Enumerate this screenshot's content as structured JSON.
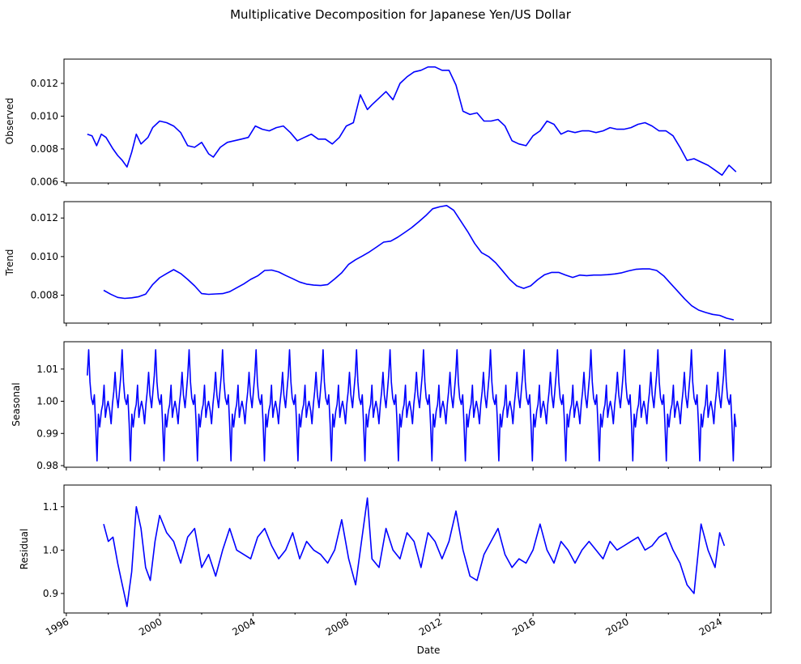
{
  "chart_data": {
    "type": "line",
    "title": "Multiplicative Decomposition for Japanese Yen/US Dollar",
    "xlabel": "Date",
    "xlim": [
      1995.9,
      2026.2
    ],
    "x_ticks": [
      {
        "value": 1996,
        "label": "1996"
      },
      {
        "value": 2000,
        "label": "2000"
      },
      {
        "value": 2004,
        "label": "2004"
      },
      {
        "value": 2008,
        "label": "2008"
      },
      {
        "value": 2012,
        "label": "2012"
      },
      {
        "value": 2016,
        "label": "2016"
      },
      {
        "value": 2020,
        "label": "2020"
      },
      {
        "value": 2024,
        "label": "2024"
      }
    ],
    "x_minor_ticks": [
      1997.8,
      2001.8,
      2005.8,
      2009.8,
      2013.8,
      2017.8,
      2021.8,
      2025.8
    ],
    "line_color": "#0000ff",
    "panels": [
      {
        "ylabel": "Observed",
        "ylim": [
          0.00592,
          0.01348
        ],
        "y_ticks": [
          {
            "value": 0.006,
            "label": "0.006"
          },
          {
            "value": 0.008,
            "label": "0.008"
          },
          {
            "value": 0.01,
            "label": "0.010"
          },
          {
            "value": 0.012,
            "label": "0.012"
          }
        ],
        "x": [
          1996.9,
          1997.1,
          1997.3,
          1997.5,
          1997.7,
          1998.0,
          1998.2,
          1998.4,
          1998.6,
          1998.8,
          1999.0,
          1999.2,
          1999.5,
          1999.7,
          2000.0,
          2000.3,
          2000.6,
          2000.9,
          2001.2,
          2001.5,
          2001.8,
          2002.1,
          2002.3,
          2002.6,
          2002.9,
          2003.2,
          2003.5,
          2003.8,
          2004.1,
          2004.4,
          2004.7,
          2005.0,
          2005.3,
          2005.6,
          2005.9,
          2006.2,
          2006.5,
          2006.8,
          2007.1,
          2007.4,
          2007.7,
          2008.0,
          2008.3,
          2008.6,
          2008.9,
          2009.1,
          2009.4,
          2009.7,
          2010.0,
          2010.3,
          2010.6,
          2010.9,
          2011.2,
          2011.5,
          2011.8,
          2012.1,
          2012.4,
          2012.7,
          2013.0,
          2013.3,
          2013.6,
          2013.9,
          2014.2,
          2014.5,
          2014.8,
          2015.1,
          2015.4,
          2015.7,
          2016.0,
          2016.3,
          2016.6,
          2016.9,
          2017.2,
          2017.5,
          2017.8,
          2018.1,
          2018.4,
          2018.7,
          2019.0,
          2019.3,
          2019.6,
          2019.9,
          2020.2,
          2020.5,
          2020.8,
          2021.1,
          2021.4,
          2021.7,
          2022.0,
          2022.3,
          2022.6,
          2022.9,
          2023.2,
          2023.5,
          2023.8,
          2024.1,
          2024.4,
          2024.7
        ],
        "y": [
          0.0089,
          0.0088,
          0.0082,
          0.0089,
          0.0087,
          0.008,
          0.0076,
          0.0073,
          0.0069,
          0.0078,
          0.0089,
          0.0083,
          0.0087,
          0.0093,
          0.0097,
          0.0096,
          0.0094,
          0.009,
          0.0082,
          0.0081,
          0.0084,
          0.0077,
          0.0075,
          0.0081,
          0.0084,
          0.0085,
          0.0086,
          0.0087,
          0.0094,
          0.0092,
          0.0091,
          0.0093,
          0.0094,
          0.009,
          0.0085,
          0.0087,
          0.0089,
          0.0086,
          0.0086,
          0.0083,
          0.0087,
          0.0094,
          0.0096,
          0.0113,
          0.0104,
          0.0107,
          0.0111,
          0.0115,
          0.011,
          0.012,
          0.0124,
          0.0127,
          0.0128,
          0.013,
          0.013,
          0.0128,
          0.0128,
          0.0119,
          0.0103,
          0.0101,
          0.0102,
          0.0097,
          0.0097,
          0.0098,
          0.0094,
          0.0085,
          0.0083,
          0.0082,
          0.0088,
          0.0091,
          0.0097,
          0.0095,
          0.0089,
          0.0091,
          0.009,
          0.0091,
          0.0091,
          0.009,
          0.0091,
          0.0093,
          0.0092,
          0.0092,
          0.0093,
          0.0095,
          0.0096,
          0.0094,
          0.0091,
          0.0091,
          0.0088,
          0.0081,
          0.0073,
          0.0074,
          0.0072,
          0.007,
          0.0067,
          0.0064,
          0.007,
          0.0066
        ]
      },
      {
        "ylabel": "Trend",
        "ylim": [
          0.00655,
          0.01285
        ],
        "y_ticks": [
          {
            "value": 0.008,
            "label": "0.008"
          },
          {
            "value": 0.01,
            "label": "0.010"
          },
          {
            "value": 0.012,
            "label": "0.012"
          }
        ],
        "x": [
          1997.6,
          1997.9,
          1998.2,
          1998.5,
          1998.8,
          1999.1,
          1999.4,
          1999.7,
          2000.0,
          2000.3,
          2000.6,
          2000.9,
          2001.2,
          2001.5,
          2001.8,
          2002.1,
          2002.4,
          2002.7,
          2003.0,
          2003.3,
          2003.6,
          2003.9,
          2004.2,
          2004.5,
          2004.8,
          2005.1,
          2005.4,
          2005.7,
          2006.0,
          2006.3,
          2006.6,
          2006.9,
          2007.2,
          2007.5,
          2007.8,
          2008.1,
          2008.4,
          2008.7,
          2009.0,
          2009.3,
          2009.6,
          2009.9,
          2010.2,
          2010.5,
          2010.8,
          2011.1,
          2011.4,
          2011.7,
          2012.0,
          2012.3,
          2012.6,
          2012.9,
          2013.2,
          2013.5,
          2013.8,
          2014.1,
          2014.4,
          2014.7,
          2015.0,
          2015.3,
          2015.6,
          2015.9,
          2016.2,
          2016.5,
          2016.8,
          2017.1,
          2017.4,
          2017.7,
          2018.0,
          2018.3,
          2018.6,
          2018.9,
          2019.2,
          2019.5,
          2019.8,
          2020.1,
          2020.4,
          2020.7,
          2021.0,
          2021.3,
          2021.6,
          2021.9,
          2022.2,
          2022.5,
          2022.8,
          2023.1,
          2023.4,
          2023.7,
          2024.0,
          2024.3,
          2024.6
        ],
        "y": [
          0.00825,
          0.00805,
          0.00788,
          0.00783,
          0.00786,
          0.00792,
          0.00805,
          0.00855,
          0.0089,
          0.00912,
          0.00932,
          0.00912,
          0.00882,
          0.00848,
          0.00808,
          0.00804,
          0.00806,
          0.00808,
          0.00818,
          0.00838,
          0.00858,
          0.00882,
          0.009,
          0.00928,
          0.0093,
          0.0092,
          0.00902,
          0.00885,
          0.00868,
          0.00857,
          0.00852,
          0.0085,
          0.00855,
          0.00884,
          0.00916,
          0.0096,
          0.00984,
          0.01004,
          0.01025,
          0.0105,
          0.01075,
          0.0108,
          0.011,
          0.01125,
          0.0115,
          0.0118,
          0.01212,
          0.01248,
          0.01258,
          0.01265,
          0.0124,
          0.01185,
          0.0113,
          0.01068,
          0.0102,
          0.01,
          0.00968,
          0.00925,
          0.00882,
          0.00848,
          0.00835,
          0.00848,
          0.0088,
          0.00906,
          0.00918,
          0.00918,
          0.00904,
          0.00892,
          0.00904,
          0.00901,
          0.00904,
          0.00904,
          0.00906,
          0.0091,
          0.00916,
          0.00926,
          0.00934,
          0.00936,
          0.00936,
          0.00928,
          0.009,
          0.0086,
          0.0082,
          0.0078,
          0.00745,
          0.00722,
          0.0071,
          0.007,
          0.00695,
          0.0068,
          0.00672
        ]
      },
      {
        "ylabel": "Seasonal",
        "ylim": [
          0.9795,
          1.0185
        ],
        "y_ticks": [
          {
            "value": 0.98,
            "label": "0.98"
          },
          {
            "value": 0.99,
            "label": "0.99"
          },
          {
            "value": 1.0,
            "label": "1.00"
          },
          {
            "value": 1.01,
            "label": "1.01"
          }
        ],
        "period_years": 1.435,
        "start": 1996.9,
        "end": 2024.75,
        "cycle_x": [
          0.0,
          0.04,
          0.08,
          0.12,
          0.17,
          0.21,
          0.25,
          0.29,
          0.33,
          0.37,
          0.42,
          0.46,
          0.5,
          0.54,
          0.58,
          0.62,
          0.67,
          0.71,
          0.75,
          0.79,
          0.83,
          0.87,
          0.92,
          0.96,
          1.0
        ],
        "cycle_y": [
          1.008,
          1.016,
          1.006,
          1.001,
          0.999,
          1.002,
          0.993,
          0.9815,
          0.996,
          0.992,
          0.997,
          0.999,
          1.005,
          0.995,
          0.998,
          1.0,
          0.997,
          0.993,
          0.999,
          1.003,
          1.009,
          1.002,
          0.998,
          1.003,
          1.008
        ]
      },
      {
        "ylabel": "Residual",
        "ylim": [
          0.855,
          1.15
        ],
        "y_ticks": [
          {
            "value": 0.9,
            "label": "0.9"
          },
          {
            "value": 1.0,
            "label": "1.0"
          },
          {
            "value": 1.1,
            "label": "1.1"
          }
        ],
        "x": [
          1997.6,
          1997.8,
          1998.0,
          1998.2,
          1998.4,
          1998.6,
          1998.8,
          1999.0,
          1999.2,
          1999.4,
          1999.6,
          1999.8,
          2000.0,
          2000.3,
          2000.6,
          2000.9,
          2001.2,
          2001.5,
          2001.8,
          2002.1,
          2002.4,
          2002.7,
          2003.0,
          2003.3,
          2003.6,
          2003.9,
          2004.2,
          2004.5,
          2004.8,
          2005.1,
          2005.4,
          2005.7,
          2006.0,
          2006.3,
          2006.6,
          2006.9,
          2007.2,
          2007.5,
          2007.8,
          2008.1,
          2008.4,
          2008.6,
          2008.9,
          2009.1,
          2009.4,
          2009.7,
          2010.0,
          2010.3,
          2010.6,
          2010.9,
          2011.2,
          2011.5,
          2011.8,
          2012.1,
          2012.4,
          2012.7,
          2013.0,
          2013.3,
          2013.6,
          2013.9,
          2014.2,
          2014.5,
          2014.8,
          2015.1,
          2015.4,
          2015.7,
          2016.0,
          2016.3,
          2016.6,
          2016.9,
          2017.2,
          2017.5,
          2017.8,
          2018.1,
          2018.4,
          2018.7,
          2019.0,
          2019.3,
          2019.6,
          2019.9,
          2020.2,
          2020.5,
          2020.8,
          2021.1,
          2021.4,
          2021.7,
          2022.0,
          2022.3,
          2022.6,
          2022.9,
          2023.2,
          2023.5,
          2023.8,
          2024.0,
          2024.2
        ],
        "y": [
          1.06,
          1.02,
          1.03,
          0.97,
          0.92,
          0.87,
          0.95,
          1.1,
          1.05,
          0.96,
          0.93,
          1.02,
          1.08,
          1.04,
          1.02,
          0.97,
          1.03,
          1.05,
          0.96,
          0.99,
          0.94,
          1.0,
          1.05,
          1.0,
          0.99,
          0.98,
          1.03,
          1.05,
          1.01,
          0.98,
          1.0,
          1.04,
          0.98,
          1.02,
          1.0,
          0.99,
          0.97,
          1.0,
          1.07,
          0.98,
          0.92,
          1.0,
          1.12,
          0.98,
          0.96,
          1.05,
          1.0,
          0.98,
          1.04,
          1.02,
          0.96,
          1.04,
          1.02,
          0.98,
          1.02,
          1.09,
          1.0,
          0.94,
          0.93,
          0.99,
          1.02,
          1.05,
          0.99,
          0.96,
          0.98,
          0.97,
          1.0,
          1.06,
          1.0,
          0.97,
          1.02,
          1.0,
          0.97,
          1.0,
          1.02,
          1.0,
          0.98,
          1.02,
          1.0,
          1.01,
          1.02,
          1.03,
          1.0,
          1.01,
          1.03,
          1.04,
          1.0,
          0.97,
          0.92,
          0.9,
          1.06,
          1.0,
          0.96,
          1.04,
          1.01
        ]
      }
    ]
  }
}
